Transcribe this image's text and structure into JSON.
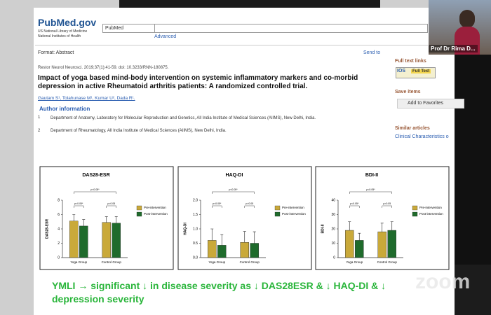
{
  "header": {
    "logo": "PubMed.gov",
    "logo_line1": "US National Library of Medicine",
    "logo_line2": "National Institutes of Health",
    "database": "PubMed",
    "advanced": "Advanced"
  },
  "toolbar": {
    "format": "Format: Abstract",
    "send_to": "Send to"
  },
  "article": {
    "citation": "Restor Neurol Neurosci. 2019;37(1):41-59. doi: 10.3233/RNN-180875.",
    "title": "Impact of yoga based mind-body intervention on systemic inflammatory markers and co-morbid depression in active Rheumatoid arthritis patients: A randomized controlled trial.",
    "authors": "Gautam S¹, Tolahunase M¹, Kumar U², Dada R¹.",
    "author_info": "Author information",
    "affiliations": [
      {
        "num": "1",
        "text": "Department of Anatomy, Laboratory for Molecular Reproduction and Genetics, All India Institute of Medical Sciences (AIIMS), New Delhi, India."
      },
      {
        "num": "2",
        "text": "Department of Rheumatology, All India Institute of Medical Sciences (AIIMS), New Delhi, India."
      }
    ]
  },
  "sidebar": {
    "full_text_links": "Full text links",
    "publisher": "IOS",
    "full_text": "Full Text",
    "save_items": "Save items",
    "add_favorites": "Add to Favorites",
    "similar": "Similar articles",
    "similar_item": "Clinical Characteristics o"
  },
  "presenter": "Prof Dr Rima D...",
  "caption": "YMLI → significant ↓ in disease severity as ↓ DAS28ESR & ↓ HAQ-DI & ↓ depression severity",
  "zoom": "zoom",
  "chart_data": [
    {
      "type": "bar",
      "title": "DAS28-ESR",
      "y_label": "DAS28-ESR",
      "categories": [
        "Yoga Group",
        "Control Group"
      ],
      "series": [
        {
          "name": "Pre-intervention",
          "color": "#c9a93a",
          "values": [
            5.1,
            4.9
          ],
          "errors": [
            0.9,
            0.8
          ]
        },
        {
          "name": "Post-intervention",
          "color": "#1f6b2c",
          "values": [
            4.4,
            4.8
          ],
          "errors": [
            0.9,
            0.9
          ]
        }
      ],
      "ylim": [
        0,
        8
      ],
      "yticks": [
        0,
        2,
        4,
        6,
        8
      ],
      "annotations": [
        "p<0.05*",
        "p<0.05*",
        "p>0.05"
      ]
    },
    {
      "type": "bar",
      "title": "HAQ-DI",
      "y_label": "HAQ-DI",
      "categories": [
        "Yoga Group",
        "Control Group"
      ],
      "series": [
        {
          "name": "Pre-intervention",
          "color": "#c9a93a",
          "values": [
            0.6,
            0.53
          ],
          "errors": [
            0.4,
            0.38
          ]
        },
        {
          "name": "Post-intervention",
          "color": "#1f6b2c",
          "values": [
            0.43,
            0.5
          ],
          "errors": [
            0.37,
            0.4
          ]
        }
      ],
      "ylim": [
        0,
        2
      ],
      "yticks": [
        {
          "value": 0,
          "label": "0.0"
        },
        {
          "value": 0.5,
          "label": "0.5"
        },
        {
          "value": 1,
          "label": "1.0"
        },
        {
          "value": 1.5,
          "label": "1.5"
        },
        {
          "value": 2,
          "label": "2.0"
        }
      ],
      "annotations": [
        "p<0.05*",
        "p<0.05*",
        "p>0.05"
      ]
    },
    {
      "type": "bar",
      "title": "BDI-II",
      "y_label": "BDI-II",
      "categories": [
        "Yoga Group",
        "Control Group"
      ],
      "series": [
        {
          "name": "Pre-intervention",
          "color": "#c9a93a",
          "values": [
            19,
            18
          ],
          "errors": [
            6,
            6
          ]
        },
        {
          "name": "Post-intervention",
          "color": "#1f6b2c",
          "values": [
            12,
            19
          ],
          "errors": [
            5,
            6
          ]
        }
      ],
      "ylim": [
        0,
        40
      ],
      "yticks": [
        0,
        10,
        20,
        30,
        40
      ],
      "annotations": [
        "p<0.05*",
        "p<0.05*",
        "p>0.05"
      ]
    }
  ]
}
